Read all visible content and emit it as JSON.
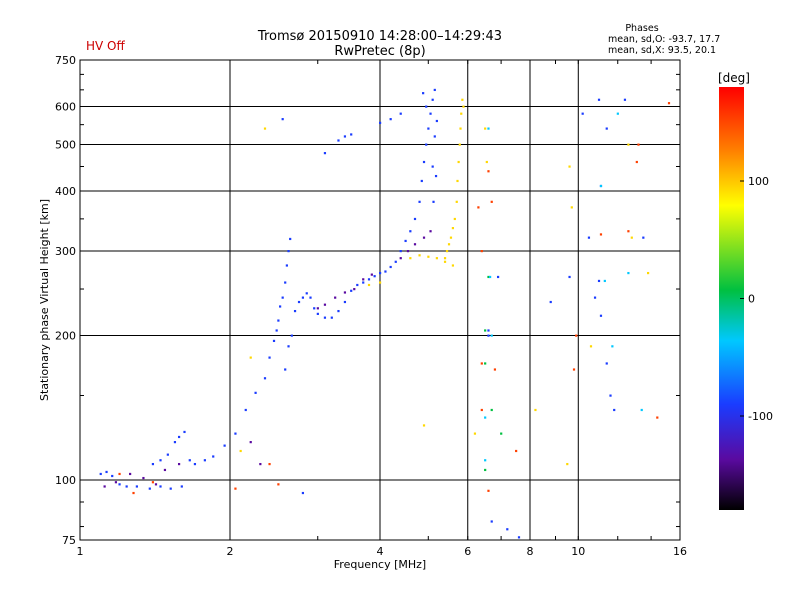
{
  "header": {
    "status": "HV Off",
    "status_color": "#cc0000",
    "title_line1": "Tromsø 20150910 14:28:00–14:29:43",
    "title_line2": "RwPretec (8p)",
    "stats_title": "Phases",
    "stats_line1": "mean, sd,O: -93.7, 17.7",
    "stats_line2": "mean, sd,X:  93.5, 20.1"
  },
  "chart_data": {
    "type": "scatter",
    "title": "Tromsø 20150910 14:28:00–14:29:43",
    "subtitle": "RwPretec (8p)",
    "xlabel": "Frequency [MHz]",
    "ylabel": "Stationary phase Virtual Height [km]",
    "x_scale": "log",
    "y_scale": "log",
    "xlim": [
      1,
      16
    ],
    "ylim": [
      75,
      750
    ],
    "x_ticks": [
      1,
      2,
      4,
      6,
      8,
      10,
      16
    ],
    "x_tick_labels": [
      "1",
      "2",
      "4",
      "6",
      "8",
      "10",
      "16"
    ],
    "y_ticks": [
      75,
      100,
      200,
      300,
      400,
      500,
      600,
      750
    ],
    "y_tick_labels": [
      "75",
      "100",
      "200",
      "300",
      "400",
      "500",
      "600",
      "750"
    ],
    "grid": true,
    "colorbar": {
      "label": "[deg]",
      "range": [
        -180,
        180
      ],
      "ticks": [
        100,
        0,
        -100
      ],
      "tick_labels": [
        "100",
        "0",
        "-100"
      ]
    },
    "series": [
      {
        "phase_deg": -100,
        "color": "#1a3cff",
        "points": [
          [
            1.1,
            103
          ],
          [
            1.13,
            104
          ],
          [
            1.16,
            102
          ],
          [
            1.2,
            98
          ],
          [
            1.24,
            97
          ],
          [
            1.3,
            97
          ],
          [
            1.38,
            96
          ],
          [
            1.45,
            97
          ],
          [
            1.52,
            96
          ],
          [
            1.6,
            97
          ],
          [
            1.4,
            108
          ],
          [
            1.45,
            110
          ],
          [
            1.5,
            113
          ],
          [
            1.55,
            120
          ],
          [
            1.58,
            123
          ],
          [
            1.62,
            126
          ],
          [
            1.66,
            110
          ],
          [
            1.7,
            108
          ],
          [
            1.78,
            110
          ],
          [
            1.85,
            112
          ],
          [
            1.95,
            118
          ],
          [
            2.05,
            125
          ],
          [
            2.15,
            140
          ],
          [
            2.25,
            152
          ],
          [
            2.35,
            163
          ],
          [
            2.4,
            180
          ],
          [
            2.45,
            195
          ],
          [
            2.48,
            205
          ],
          [
            2.5,
            215
          ],
          [
            2.52,
            230
          ],
          [
            2.55,
            240
          ],
          [
            2.58,
            258
          ],
          [
            2.6,
            280
          ],
          [
            2.62,
            300
          ],
          [
            2.64,
            318
          ],
          [
            2.58,
            170
          ],
          [
            2.62,
            190
          ],
          [
            2.66,
            200
          ],
          [
            2.7,
            225
          ],
          [
            2.75,
            235
          ],
          [
            2.8,
            240
          ],
          [
            2.85,
            245
          ],
          [
            2.9,
            240
          ],
          [
            2.95,
            228
          ],
          [
            3.0,
            222
          ],
          [
            3.1,
            218
          ],
          [
            3.2,
            218
          ],
          [
            3.3,
            225
          ],
          [
            3.4,
            235
          ],
          [
            3.5,
            248
          ],
          [
            3.6,
            255
          ],
          [
            3.7,
            258
          ],
          [
            3.8,
            262
          ],
          [
            3.9,
            266
          ],
          [
            4.0,
            270
          ],
          [
            4.1,
            272
          ],
          [
            4.2,
            278
          ],
          [
            4.3,
            285
          ],
          [
            4.4,
            300
          ],
          [
            4.5,
            315
          ],
          [
            4.6,
            330
          ],
          [
            4.7,
            350
          ],
          [
            4.8,
            380
          ],
          [
            4.85,
            420
          ],
          [
            4.9,
            460
          ],
          [
            4.95,
            500
          ],
          [
            5.0,
            540
          ],
          [
            5.05,
            580
          ],
          [
            5.1,
            620
          ],
          [
            5.15,
            650
          ],
          [
            5.1,
            450
          ],
          [
            5.15,
            520
          ],
          [
            5.2,
            560
          ],
          [
            5.12,
            380
          ],
          [
            4.95,
            600
          ],
          [
            4.88,
            640
          ],
          [
            5.18,
            430
          ],
          [
            3.1,
            480
          ],
          [
            3.3,
            510
          ],
          [
            3.4,
            520
          ],
          [
            3.5,
            525
          ],
          [
            4.0,
            555
          ],
          [
            4.2,
            565
          ],
          [
            4.4,
            580
          ],
          [
            2.55,
            565
          ],
          [
            2.8,
            94
          ],
          [
            6.7,
            82
          ],
          [
            7.2,
            79
          ],
          [
            7.6,
            76
          ],
          [
            8.8,
            235
          ],
          [
            9.6,
            265
          ],
          [
            10.8,
            240
          ],
          [
            11.1,
            220
          ],
          [
            11.4,
            175
          ],
          [
            11.6,
            150
          ],
          [
            11.8,
            140
          ],
          [
            11.0,
            620
          ],
          [
            11.4,
            540
          ],
          [
            11.1,
            410
          ],
          [
            6.6,
            205
          ],
          [
            6.6,
            200
          ],
          [
            6.9,
            265
          ],
          [
            10.2,
            580
          ],
          [
            12.4,
            620
          ],
          [
            13.5,
            320
          ],
          [
            11.0,
            260
          ],
          [
            10.5,
            320
          ]
        ]
      },
      {
        "phase_deg": -140,
        "color": "#5a0aa0",
        "points": [
          [
            1.12,
            97
          ],
          [
            1.18,
            99
          ],
          [
            1.26,
            103
          ],
          [
            1.34,
            101
          ],
          [
            1.42,
            98
          ],
          [
            1.48,
            105
          ],
          [
            1.58,
            108
          ],
          [
            3.0,
            228
          ],
          [
            3.1,
            232
          ],
          [
            3.25,
            240
          ],
          [
            3.4,
            246
          ],
          [
            3.55,
            250
          ],
          [
            3.7,
            262
          ],
          [
            3.85,
            268
          ],
          [
            4.4,
            290
          ],
          [
            4.55,
            300
          ],
          [
            4.7,
            310
          ],
          [
            4.9,
            320
          ],
          [
            5.05,
            330
          ],
          [
            2.3,
            108
          ],
          [
            2.2,
            120
          ]
        ]
      },
      {
        "phase_deg": 90,
        "color": "#ffd800",
        "points": [
          [
            5.4,
            290
          ],
          [
            5.45,
            300
          ],
          [
            5.5,
            310
          ],
          [
            5.55,
            320
          ],
          [
            5.6,
            335
          ],
          [
            5.65,
            350
          ],
          [
            5.7,
            380
          ],
          [
            5.72,
            420
          ],
          [
            5.75,
            460
          ],
          [
            5.78,
            500
          ],
          [
            5.8,
            540
          ],
          [
            5.82,
            580
          ],
          [
            5.85,
            620
          ],
          [
            5.88,
            600
          ],
          [
            5.6,
            280
          ],
          [
            5.4,
            285
          ],
          [
            5.2,
            290
          ],
          [
            5.0,
            292
          ],
          [
            4.8,
            294
          ],
          [
            4.6,
            290
          ],
          [
            2.35,
            540
          ],
          [
            3.8,
            255
          ],
          [
            4.0,
            258
          ],
          [
            2.2,
            180
          ],
          [
            6.55,
            460
          ],
          [
            6.5,
            540
          ],
          [
            9.6,
            450
          ],
          [
            9.7,
            370
          ],
          [
            12.8,
            320
          ],
          [
            13.8,
            270
          ],
          [
            10.6,
            190
          ],
          [
            9.5,
            108
          ],
          [
            12.6,
            500
          ],
          [
            4.9,
            130
          ],
          [
            6.2,
            125
          ],
          [
            2.1,
            115
          ],
          [
            8.2,
            140
          ]
        ]
      },
      {
        "phase_deg": 150,
        "color": "#ff4000",
        "points": [
          [
            1.2,
            103
          ],
          [
            1.4,
            99
          ],
          [
            1.28,
            94
          ],
          [
            2.05,
            96
          ],
          [
            2.5,
            98
          ],
          [
            2.4,
            108
          ],
          [
            6.6,
            440
          ],
          [
            6.7,
            380
          ],
          [
            6.8,
            170
          ],
          [
            6.6,
            95
          ],
          [
            6.4,
            175
          ],
          [
            6.4,
            140
          ],
          [
            7.5,
            115
          ],
          [
            9.8,
            170
          ],
          [
            11.1,
            325
          ],
          [
            12.6,
            330
          ],
          [
            13.1,
            460
          ],
          [
            13.2,
            500
          ],
          [
            15.2,
            610
          ],
          [
            14.4,
            135
          ],
          [
            9.9,
            200
          ],
          [
            6.3,
            370
          ],
          [
            6.4,
            300
          ]
        ]
      },
      {
        "phase_deg": 30,
        "color": "#00c040",
        "points": [
          [
            6.5,
            175
          ],
          [
            6.7,
            140
          ],
          [
            6.6,
            265
          ],
          [
            7.0,
            125
          ],
          [
            6.5,
            105
          ],
          [
            6.5,
            205
          ]
        ]
      },
      {
        "phase_deg": -60,
        "color": "#00c8ff",
        "points": [
          [
            6.6,
            540
          ],
          [
            6.65,
            265
          ],
          [
            6.7,
            200
          ],
          [
            6.5,
            135
          ],
          [
            6.5,
            110
          ],
          [
            11.1,
            410
          ],
          [
            12.0,
            580
          ],
          [
            12.6,
            270
          ],
          [
            13.4,
            140
          ],
          [
            11.7,
            190
          ],
          [
            11.3,
            260
          ]
        ]
      }
    ]
  }
}
